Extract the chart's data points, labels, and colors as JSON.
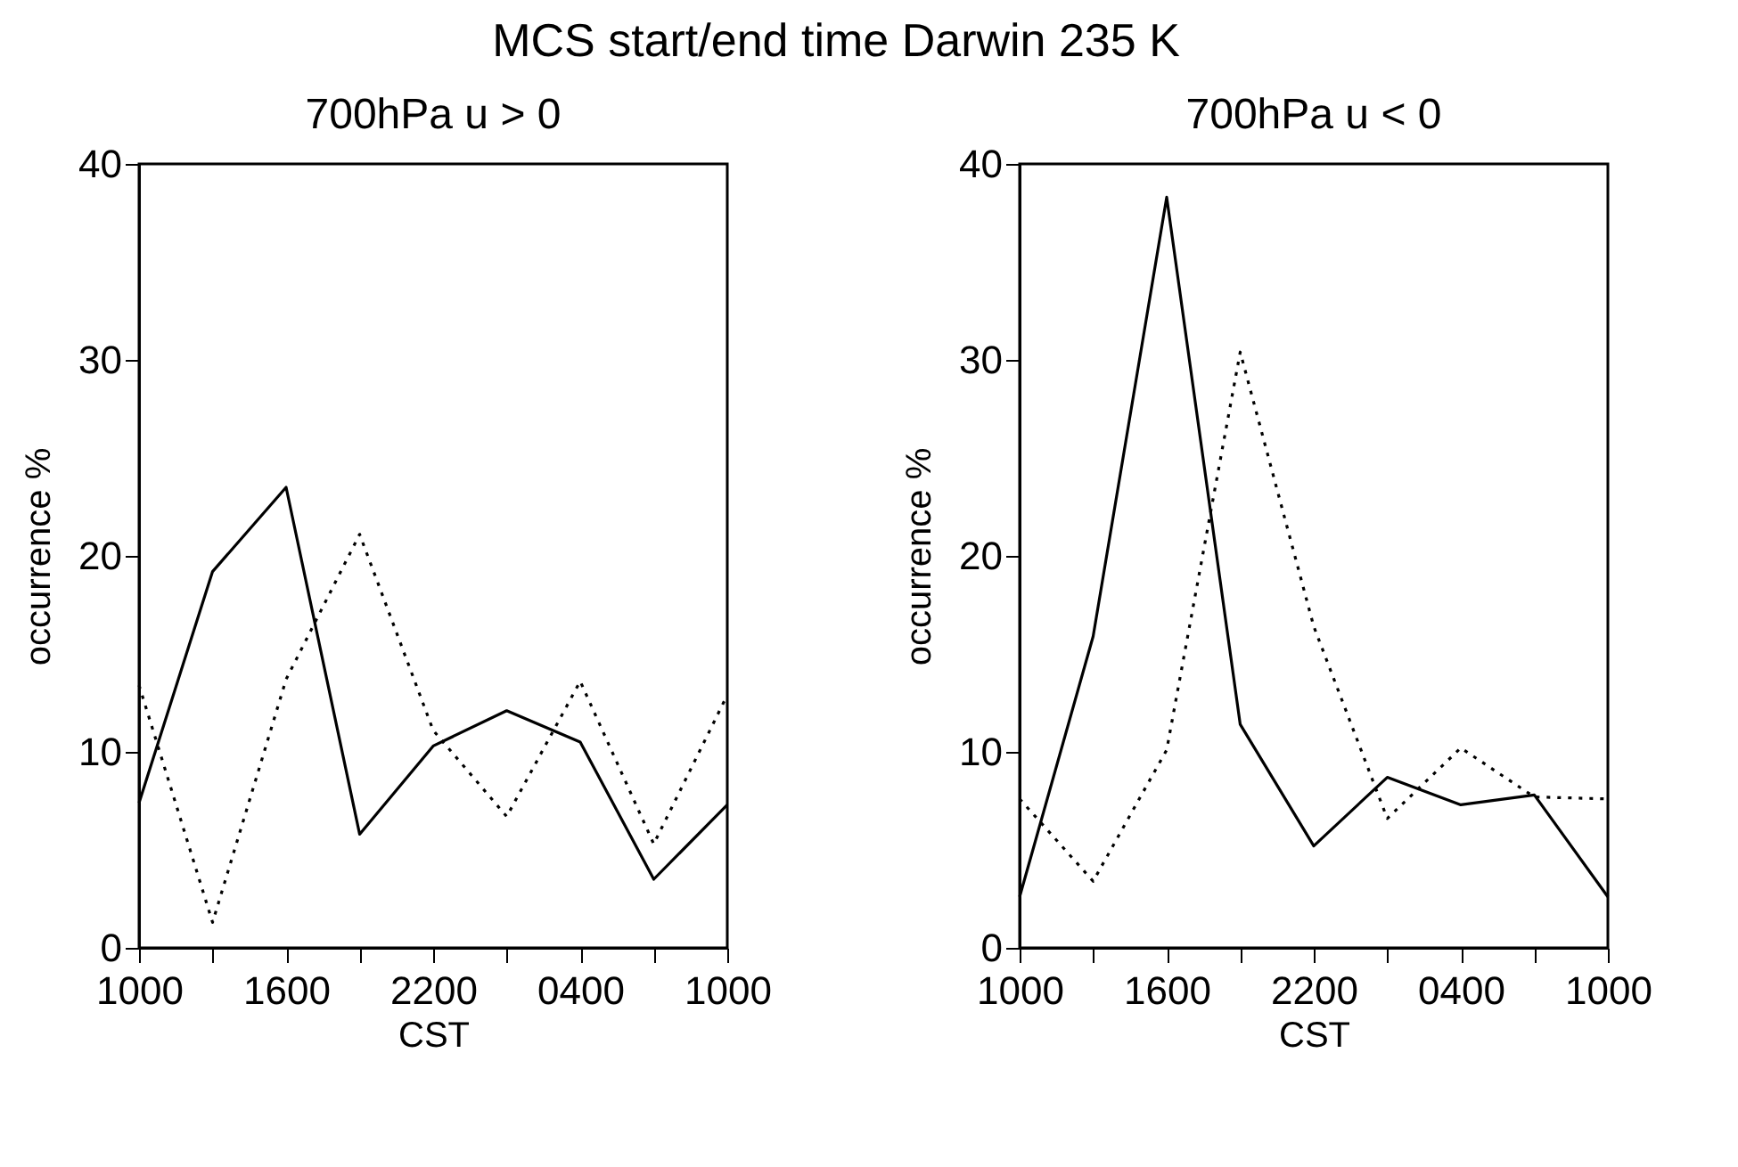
{
  "chart_data": [
    {
      "type": "line",
      "title": "MCS start/end time Darwin 235 K",
      "subtitle": "700hPa u > 0",
      "xlabel": "CST",
      "ylabel": "occurrence %",
      "categories": [
        "1000",
        null,
        "1600",
        null,
        "2200",
        null,
        "0400",
        null,
        "1000"
      ],
      "ylim": [
        0,
        40
      ],
      "yticks": [
        0,
        10,
        20,
        30,
        40
      ],
      "grid": false,
      "series": [
        {
          "color": "#000000",
          "line_style": "solid",
          "values": [
            7.4,
            19.2,
            23.5,
            5.8,
            10.3,
            12.1,
            10.5,
            3.5,
            7.3
          ]
        },
        {
          "color": "#000000",
          "line_style": "dotted",
          "values": [
            13.4,
            1.3,
            13.7,
            21.1,
            11.1,
            6.7,
            13.6,
            5.3,
            12.9
          ]
        }
      ]
    },
    {
      "type": "line",
      "subtitle": "700hPa u < 0",
      "xlabel": "CST",
      "ylabel": "occurrence %",
      "categories": [
        "1000",
        null,
        "1600",
        null,
        "2200",
        null,
        "0400",
        null,
        "1000"
      ],
      "ylim": [
        0,
        40
      ],
      "yticks": [
        0,
        10,
        20,
        30,
        40
      ],
      "grid": false,
      "series": [
        {
          "color": "#000000",
          "line_style": "solid",
          "values": [
            2.6,
            15.9,
            38.3,
            11.4,
            5.2,
            8.7,
            7.3,
            7.8,
            2.6
          ]
        },
        {
          "color": "#000000",
          "line_style": "dotted",
          "values": [
            7.6,
            3.4,
            10.1,
            30.4,
            16.4,
            6.6,
            10.2,
            7.7,
            7.6
          ]
        }
      ]
    }
  ]
}
